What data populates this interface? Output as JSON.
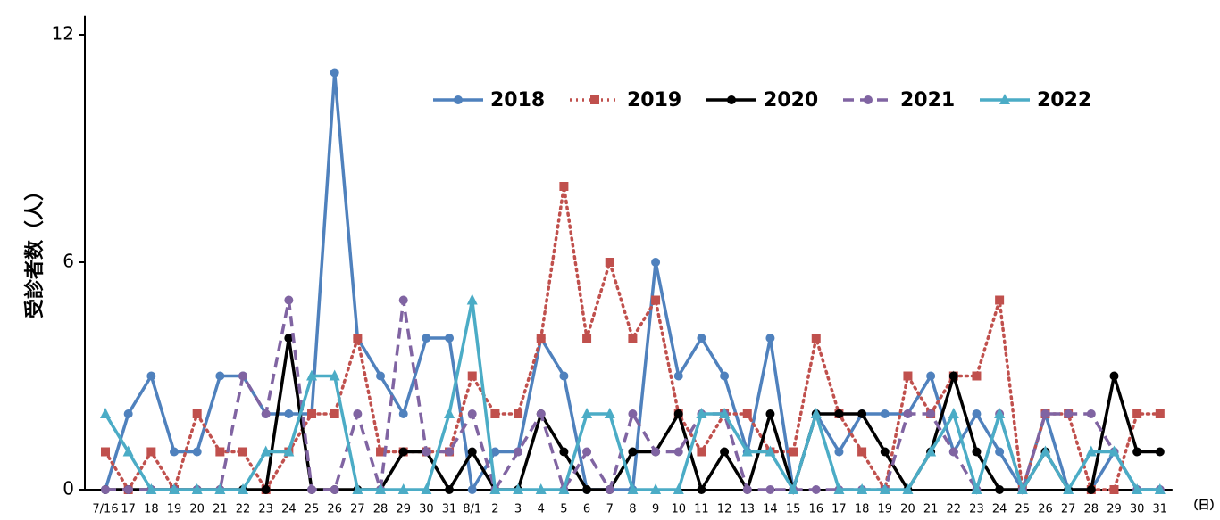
{
  "chart_data": {
    "type": "line",
    "y_label": "受診者数（人）",
    "x_unit": "（日）",
    "categories": [
      "7/16",
      "17",
      "18",
      "19",
      "20",
      "21",
      "22",
      "23",
      "24",
      "25",
      "26",
      "27",
      "28",
      "29",
      "30",
      "31",
      "8/1",
      "2",
      "3",
      "4",
      "5",
      "6",
      "7",
      "8",
      "9",
      "10",
      "11",
      "12",
      "13",
      "14",
      "15",
      "16",
      "17",
      "18",
      "19",
      "20",
      "21",
      "22",
      "23",
      "24",
      "25",
      "26",
      "27",
      "28",
      "29",
      "30",
      "31"
    ],
    "ylim": [
      0,
      12.5
    ],
    "yticks": [
      0,
      6,
      12
    ],
    "legend": "top",
    "series": [
      {
        "name": "2018",
        "color": "#4f81bd",
        "line_style": "solid",
        "marker": "circle",
        "values": [
          0,
          2,
          3,
          1,
          1,
          3,
          3,
          2,
          2,
          2,
          11,
          4,
          3,
          2,
          4,
          4,
          0,
          1,
          1,
          4,
          3,
          0,
          0,
          0,
          6,
          3,
          4,
          3,
          1,
          4,
          0,
          2,
          1,
          2,
          2,
          2,
          3,
          1,
          2,
          1,
          0,
          2,
          0,
          0,
          1,
          0,
          0
        ]
      },
      {
        "name": "2019",
        "color": "#c0504d",
        "line_style": "dotted",
        "marker": "square",
        "values": [
          1,
          0,
          1,
          0,
          2,
          1,
          1,
          0,
          1,
          2,
          2,
          4,
          1,
          1,
          1,
          1,
          3,
          2,
          2,
          4,
          8,
          4,
          6,
          4,
          5,
          2,
          1,
          2,
          2,
          1,
          1,
          4,
          2,
          1,
          0,
          3,
          2,
          3,
          3,
          5,
          0,
          2,
          2,
          0,
          0,
          2,
          2
        ]
      },
      {
        "name": "2020",
        "color": "#000000",
        "line_style": "solid",
        "marker": "circle",
        "values": [
          0,
          0,
          0,
          0,
          0,
          0,
          0,
          0,
          4,
          0,
          0,
          0,
          0,
          1,
          1,
          0,
          1,
          0,
          0,
          2,
          1,
          0,
          0,
          1,
          1,
          2,
          0,
          1,
          0,
          2,
          0,
          2,
          2,
          2,
          1,
          0,
          1,
          3,
          1,
          0,
          0,
          1,
          0,
          0,
          3,
          1,
          1
        ]
      },
      {
        "name": "2021",
        "color": "#8064a2",
        "line_style": "dashed",
        "marker": "circle",
        "values": [
          0,
          0,
          0,
          0,
          0,
          0,
          3,
          2,
          5,
          0,
          0,
          2,
          0,
          5,
          1,
          1,
          2,
          0,
          1,
          2,
          0,
          1,
          0,
          2,
          1,
          1,
          2,
          2,
          0,
          0,
          0,
          0,
          0,
          0,
          0,
          2,
          2,
          1,
          0,
          2,
          0,
          2,
          2,
          2,
          1,
          0,
          0
        ]
      },
      {
        "name": "2022",
        "color": "#4bacc6",
        "line_style": "solid",
        "marker": "triangle",
        "values": [
          2,
          1,
          0,
          0,
          0,
          0,
          0,
          1,
          1,
          3,
          3,
          0,
          0,
          0,
          0,
          2,
          5,
          0,
          0,
          0,
          0,
          2,
          2,
          0,
          0,
          0,
          2,
          2,
          1,
          1,
          0,
          2,
          0,
          0,
          0,
          0,
          1,
          2,
          0,
          2,
          0,
          1,
          0,
          1,
          1,
          0,
          0
        ]
      }
    ]
  }
}
